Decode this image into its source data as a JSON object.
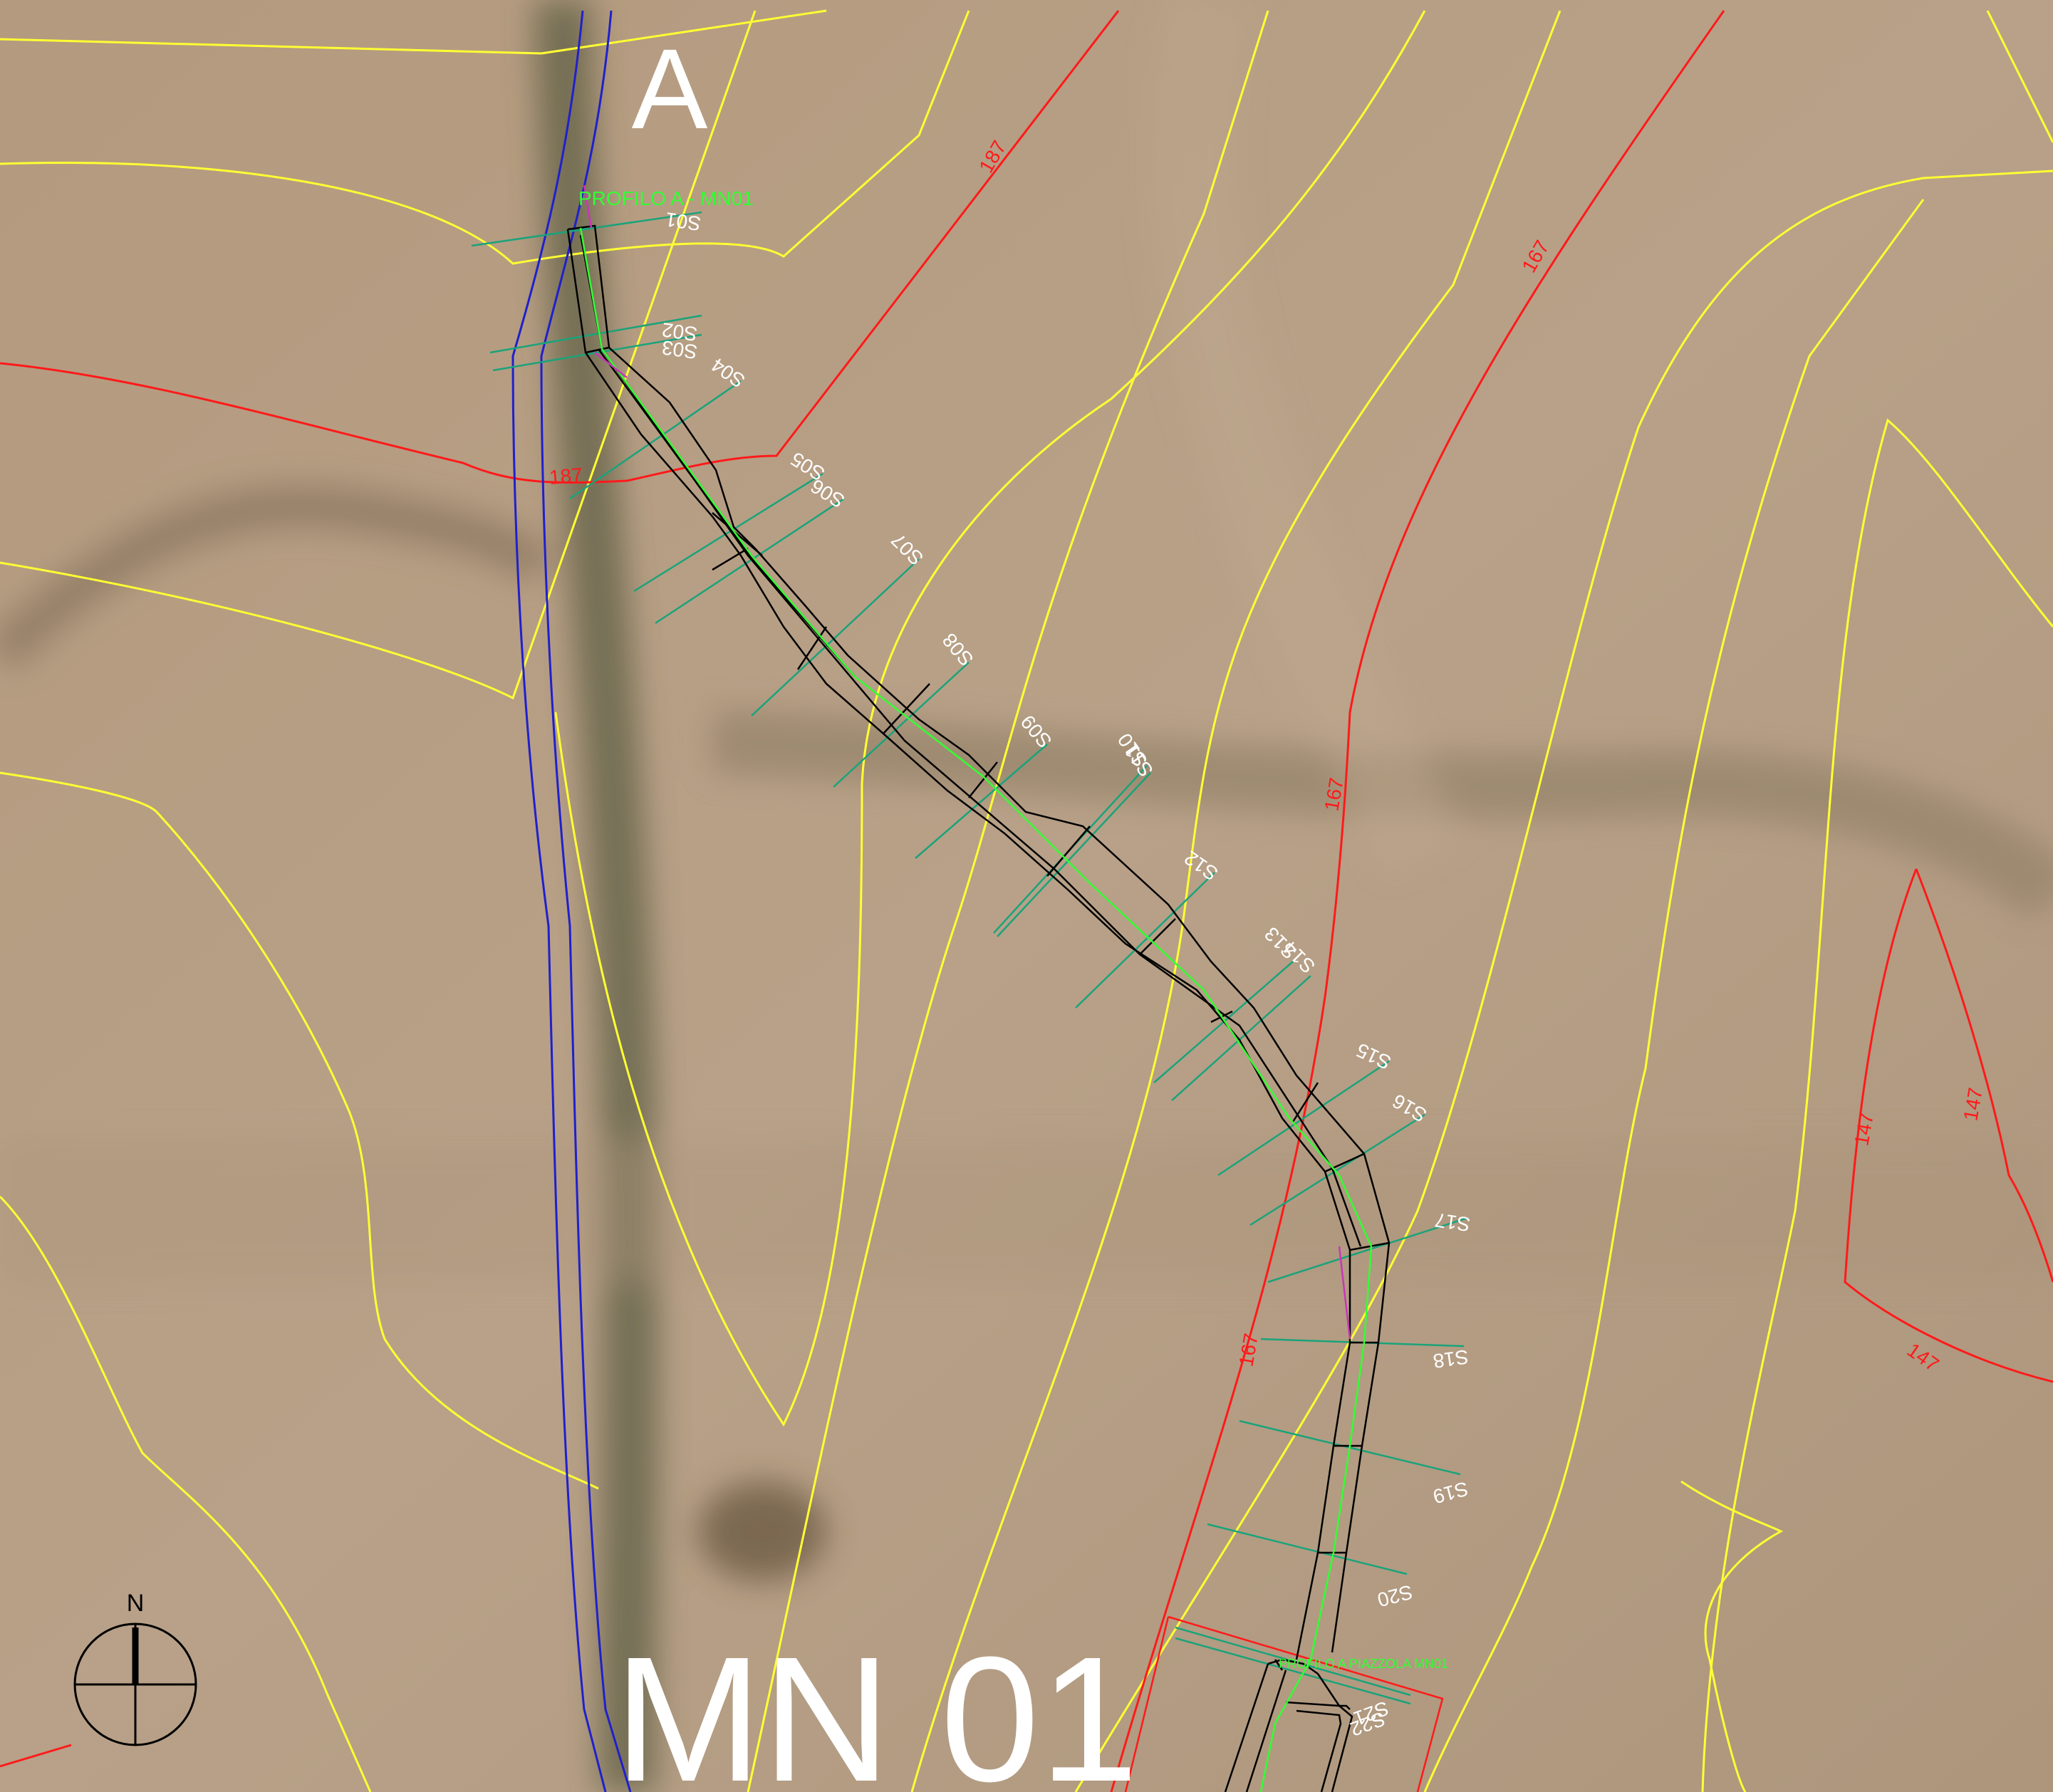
{
  "map": {
    "title_letter": "A",
    "profile_label": "PROFILO A - MN01",
    "end_label": "PROFILO A PIAZZOLA MN01",
    "sheet_label": "MN 01",
    "north_label": "N",
    "contours": {
      "c187a": "187",
      "c187b": "187",
      "c167a": "167",
      "c167b": "167",
      "c167c": "167",
      "c147a": "147",
      "c147b": "147",
      "c147c": "147"
    },
    "sections": [
      "S01",
      "S02",
      "S03",
      "S04",
      "S05",
      "S06",
      "S07",
      "S08",
      "S09",
      "S10",
      "S11",
      "S12",
      "S13",
      "S14",
      "S15",
      "S16",
      "S17",
      "S18",
      "S19",
      "S20",
      "S21",
      "S22"
    ],
    "colors": {
      "contour_major": "#ff1a1a",
      "contour_minor": "#ffff33",
      "river": "#2020cc",
      "section_line": "#1aa37a",
      "road": "#000000",
      "axis": "#33ff33",
      "label": "#ffffff"
    }
  }
}
